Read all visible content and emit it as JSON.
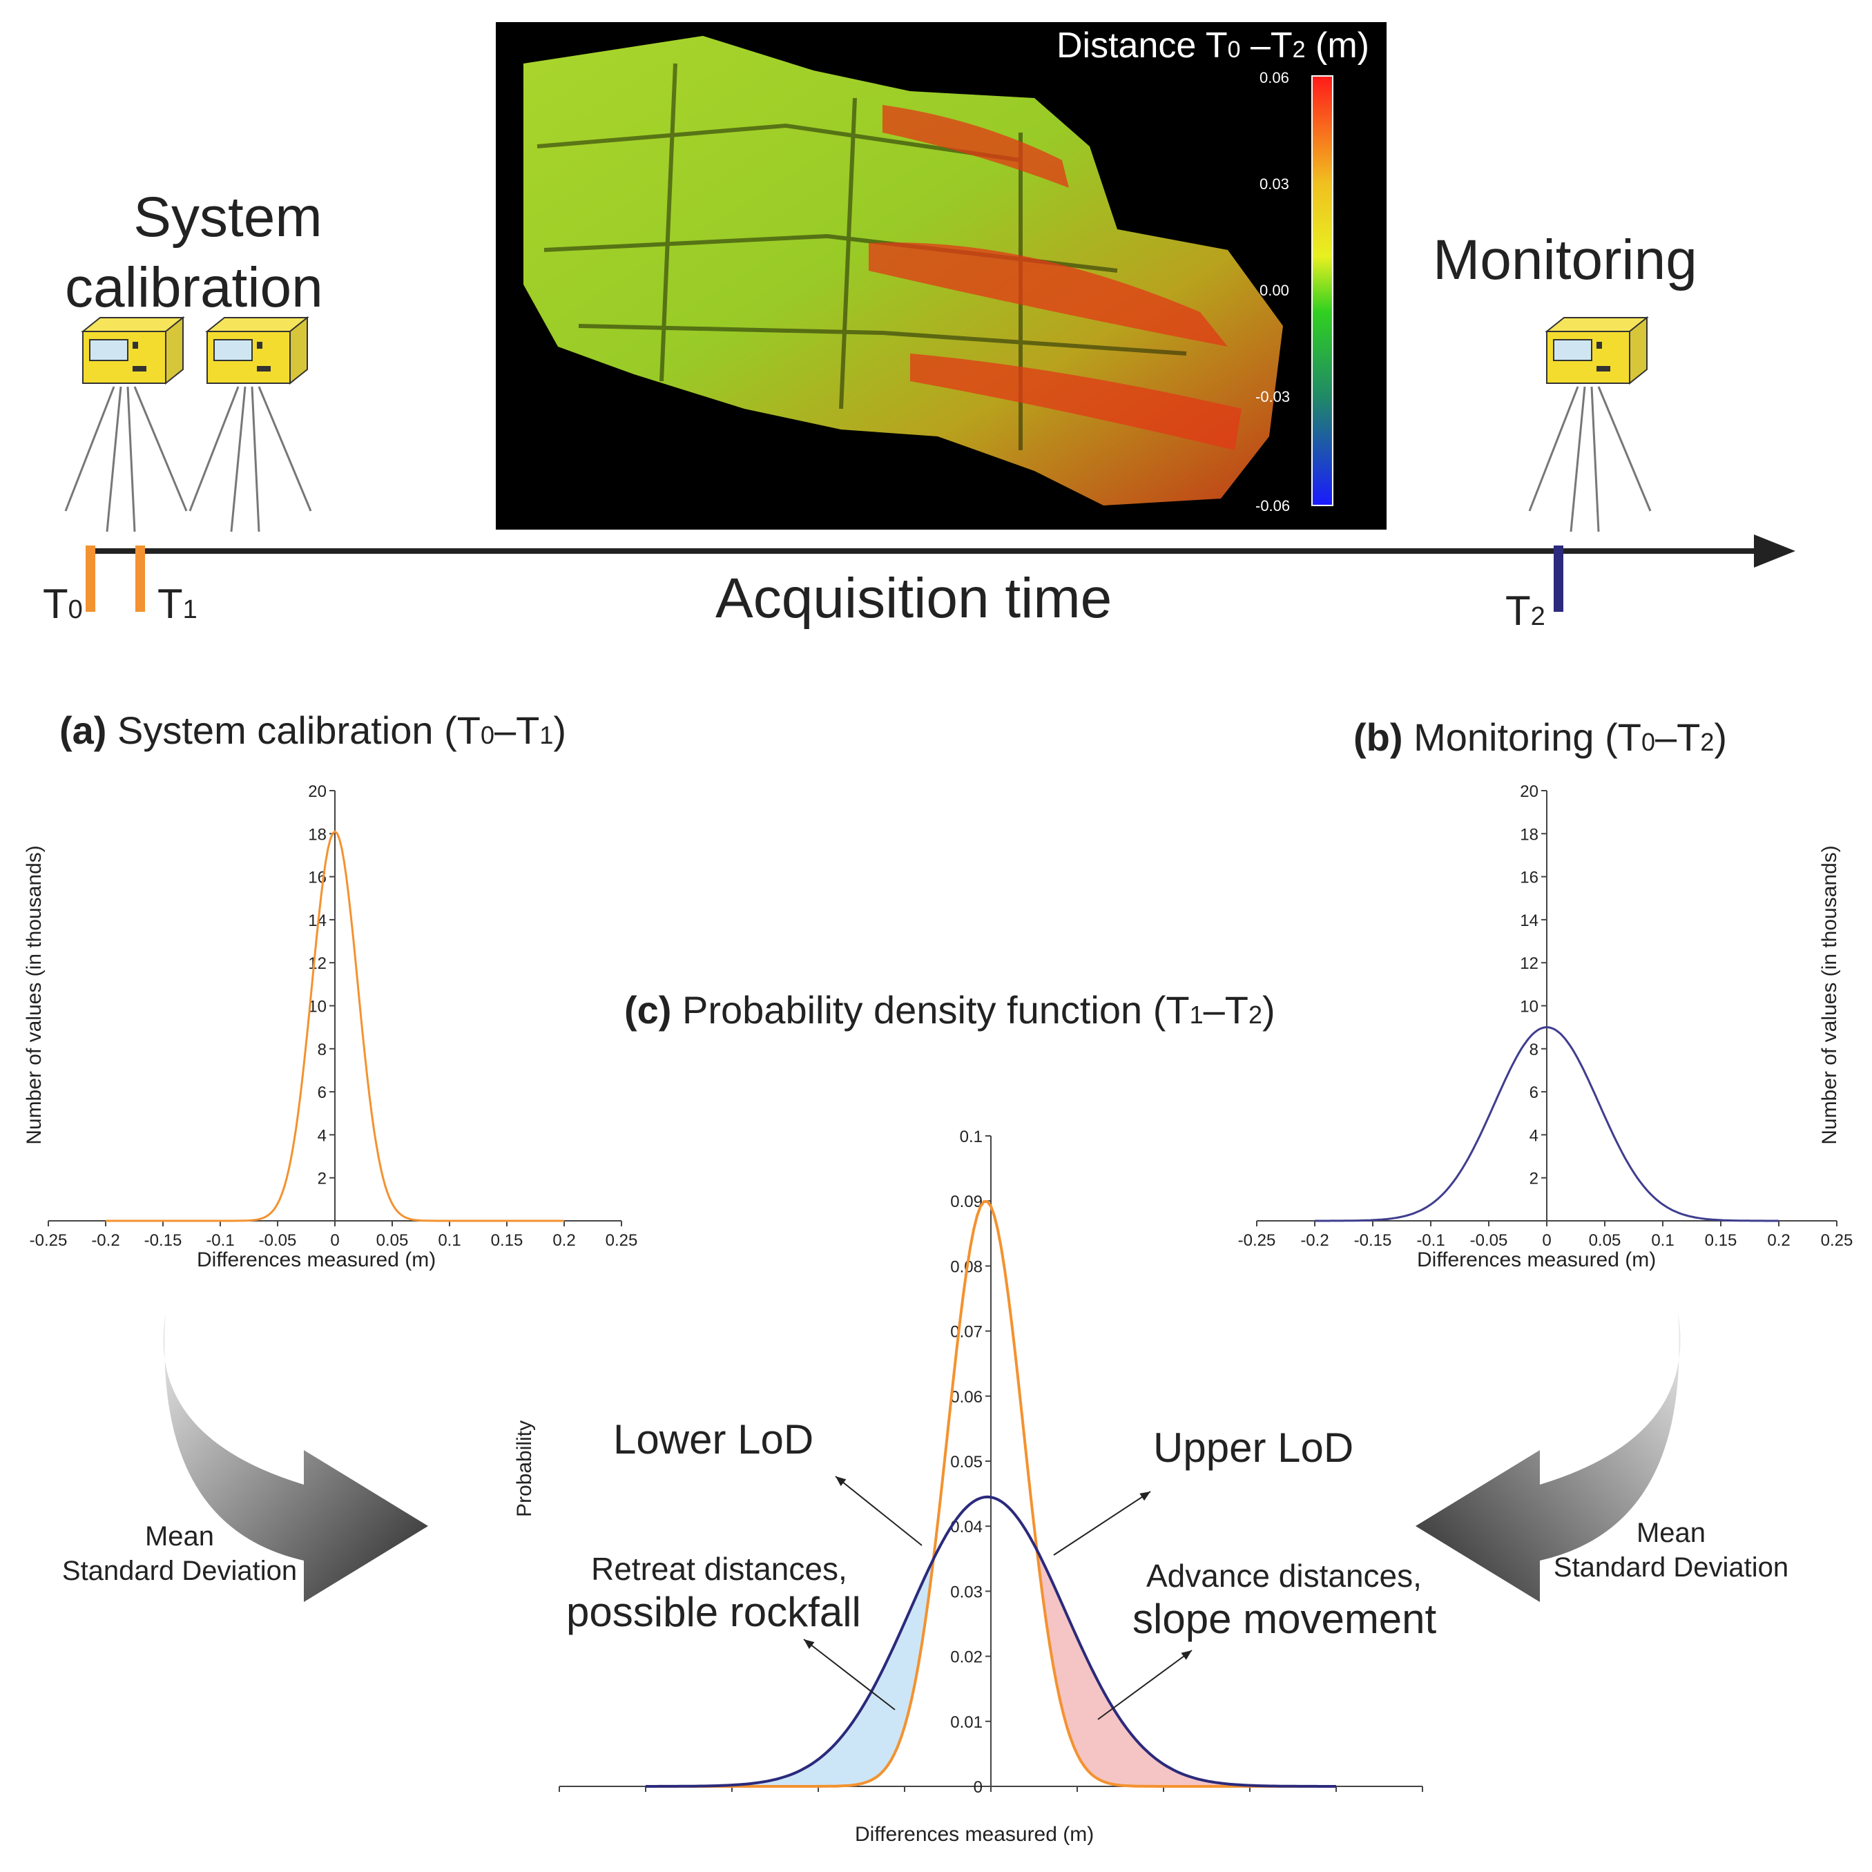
{
  "timeline": {
    "calibration_label_line1": "System",
    "calibration_label_line2": "calibration",
    "monitoring_label": "Monitoring",
    "axis_label": "Acquisition time",
    "t0": {
      "base": "T",
      "sub": "0"
    },
    "t1": {
      "base": "T",
      "sub": "1"
    },
    "t2": {
      "base": "T",
      "sub": "2"
    },
    "colors": {
      "calibration": "#f39230",
      "monitoring": "#2b2a7c",
      "axis": "#222222"
    }
  },
  "heatmap": {
    "title_prefix": "Distance T",
    "title_sub0": "0",
    "title_mid": " –T",
    "title_sub2": "2",
    "title_suffix": " (m)",
    "colorbar_ticks": [
      "0.06",
      "0.03",
      "0.00",
      "-0.03",
      "-0.06"
    ]
  },
  "panel_a": {
    "letter": "(a)",
    "title": " System calibration (T",
    "s0": "0",
    "dash": "–T",
    "s1": "1",
    "close": ")",
    "ylabel": "Number of values (in thousands)",
    "xlabel": "Differences measured (m)"
  },
  "panel_b": {
    "letter": "(b)",
    "title": " Monitoring (T",
    "s0": "0",
    "dash": "–T",
    "s1": "2",
    "close": ")",
    "ylabel": "Number of values (in thousands)",
    "xlabel": "Differences measured (m)"
  },
  "panel_c": {
    "letter": "(c)",
    "title": " Probability density function  (T",
    "s0": "1",
    "dash": "–T",
    "s1": "2",
    "close": ")",
    "ylabel": "Probability",
    "xlabel": "Differences measured (m)"
  },
  "annotations": {
    "lower_lod": "Lower LoD",
    "upper_lod": "Upper LoD",
    "retreat_line1": "Retreat distances,",
    "retreat_line2": "possible rockfall",
    "advance_line1": "Advance distances,",
    "advance_line2": "slope movement",
    "left_stats_line1": "Mean",
    "left_stats_line2": "Standard Deviation",
    "right_stats_line1": "Mean",
    "right_stats_line2": "Standard Deviation"
  },
  "chart_data": [
    {
      "type": "line",
      "id": "a",
      "xlabel": "Differences measured (m)",
      "ylabel": "Number of values (in thousands)",
      "xlim": [
        -0.25,
        0.25
      ],
      "ylim": [
        0,
        20
      ],
      "xticks": [
        "-0.25",
        "-0.2",
        "-0.15",
        "-0.1",
        "-0.05",
        "0",
        "0.05",
        "0.1",
        "0.15",
        "0.2",
        "0.25"
      ],
      "yticks": [
        "2",
        "4",
        "6",
        "8",
        "10",
        "12",
        "14",
        "16",
        "18",
        "20"
      ],
      "series": [
        {
          "mean": 0.0,
          "std": 0.02,
          "peak": 18.1,
          "x_range": [
            -0.2,
            0.2
          ],
          "color": "#f39230"
        }
      ]
    },
    {
      "type": "line",
      "id": "b",
      "xlabel": "Differences measured (m)",
      "ylabel": "Number of values (in thousands)",
      "xlim": [
        -0.25,
        0.25
      ],
      "ylim": [
        0,
        20
      ],
      "xticks": [
        "-0.25",
        "-0.2",
        "-0.15",
        "-0.1",
        "-0.05",
        "0",
        "0.05",
        "0.1",
        "0.15",
        "0.2",
        "0.25"
      ],
      "yticks": [
        "2",
        "4",
        "6",
        "8",
        "10",
        "12",
        "14",
        "16",
        "18",
        "20"
      ],
      "series": [
        {
          "mean": 0.0,
          "std": 0.045,
          "peak": 9.0,
          "x_range": [
            -0.2,
            0.2
          ],
          "color": "#3f3d8f"
        }
      ]
    },
    {
      "type": "line",
      "id": "c",
      "xlabel": "Differences measured (m)",
      "ylabel": "Probability",
      "xlim": [
        -0.25,
        0.25
      ],
      "ylim": [
        0,
        0.1
      ],
      "xticks": [
        "-0.25",
        "-0.2",
        "-0.15",
        "-0.1",
        "-0.05",
        "0",
        "0.05",
        "0.1",
        "0.15",
        "0.2",
        "0.25"
      ],
      "yticks": [
        "0",
        "0.01",
        "0.02",
        "0.03",
        "0.04",
        "0.05",
        "0.06",
        "0.07",
        "0.08",
        "0.09",
        "0.1"
      ],
      "series": [
        {
          "mean": -0.003,
          "std": 0.022,
          "peak": 0.09,
          "x_range": [
            -0.2,
            0.2
          ],
          "color": "#f39230"
        },
        {
          "mean": -0.002,
          "std": 0.045,
          "peak": 0.0445,
          "x_range": [
            -0.2,
            0.2
          ],
          "color": "#2b2a7c"
        }
      ],
      "lower_lod": -0.033,
      "upper_lod": 0.028,
      "fill_colors": {
        "lower": "#cde6f7",
        "upper": "#f5c4c4"
      }
    }
  ]
}
